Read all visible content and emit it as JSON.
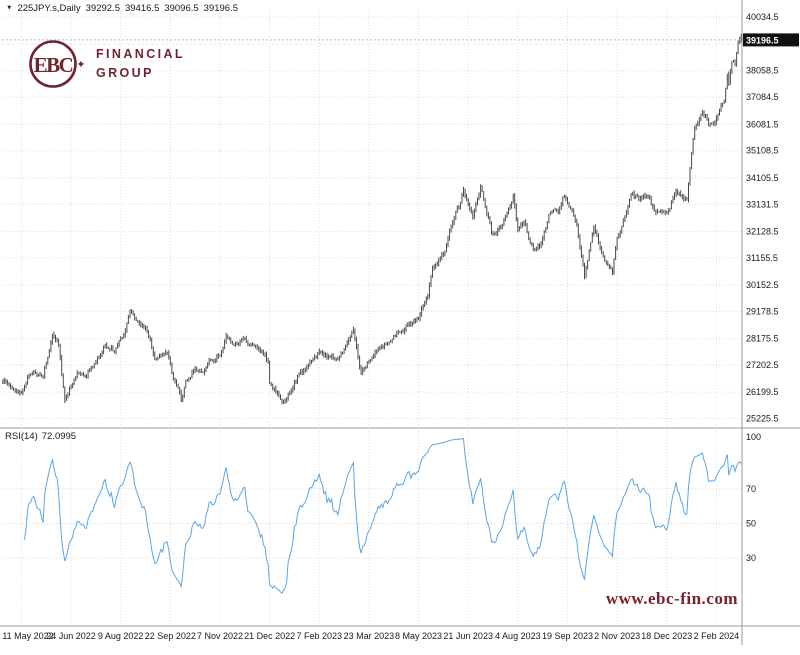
{
  "title_bar": {
    "marker_glyph": "▼",
    "symbol": "225JPY.s,Daily"
  },
  "brand": {
    "monogram": "EBC",
    "spark_glyph": "✦",
    "line1": "FINANCIAL",
    "line2": "GROUP",
    "color": "#6f2430"
  },
  "price_axis": {
    "labels": [
      40034.5,
      38058.5,
      37084.5,
      36081.5,
      35108.5,
      34105.5,
      33131.5,
      32128.5,
      31155.5,
      30152.5,
      29178.5,
      28175.5,
      27202.5,
      26199.5,
      25225.5
    ],
    "hidden_gridline": 39046.5,
    "current_price_label": "39196.5",
    "badge_bg": "#111111",
    "badge_fg": "#ffffff"
  },
  "time_axis": {
    "labels": [
      "11 May 2022",
      "24 Jun 2022",
      "9 Aug 2022",
      "22 Sep 2022",
      "7 Nov 2022",
      "21 Dec 2022",
      "7 Feb 2023",
      "23 Mar 2023",
      "8 May 2023",
      "21 Jun 2023",
      "4 Aug 2023",
      "19 Sep 2023",
      "2 Nov 2023",
      "18 Dec 2023",
      "2 Feb 2024"
    ]
  },
  "rsi_panel": {
    "name": "RSI(14)",
    "value": "72.0995",
    "axis_labels": [
      100,
      70,
      50,
      30
    ],
    "level_lines": [
      70,
      50,
      30
    ],
    "line_color": "#5aa6e6"
  },
  "watermark": {
    "text": "www.ebc-fin.com",
    "color": "#7a1f2b"
  },
  "colors": {
    "grid": "#dcdcdc",
    "bar": "#4a4a4a",
    "separator": "#9a9a9a",
    "axis_text": "#1a1a1a",
    "last_price_line": "#bbbbbb"
  },
  "chart_data": {
    "type": "bar",
    "symbol": "225JPY.s",
    "timeframe": "Daily",
    "title": "225JPY.s,Daily",
    "ohlc_last": {
      "open": 39292.5,
      "high": 39416.5,
      "low": 39096.5,
      "close": 39196.5
    },
    "price_pane": {
      "bar_count": 477,
      "ylim": [
        24950,
        40300
      ],
      "anchors": [
        [
          0,
          26650
        ],
        [
          8,
          26280
        ],
        [
          12,
          26200
        ],
        [
          16,
          26700
        ],
        [
          20,
          26900
        ],
        [
          26,
          26750
        ],
        [
          32,
          28350
        ],
        [
          36,
          27950
        ],
        [
          40,
          25850
        ],
        [
          44,
          26450
        ],
        [
          48,
          26900
        ],
        [
          54,
          26800
        ],
        [
          60,
          27350
        ],
        [
          66,
          27950
        ],
        [
          72,
          27750
        ],
        [
          78,
          28300
        ],
        [
          82,
          29200
        ],
        [
          86,
          28900
        ],
        [
          92,
          28550
        ],
        [
          98,
          27500
        ],
        [
          106,
          27650
        ],
        [
          110,
          26750
        ],
        [
          115,
          25950
        ],
        [
          118,
          26600
        ],
        [
          124,
          27050
        ],
        [
          128,
          26900
        ],
        [
          134,
          27400
        ],
        [
          140,
          27550
        ],
        [
          144,
          28250
        ],
        [
          150,
          27950
        ],
        [
          156,
          28150
        ],
        [
          162,
          27800
        ],
        [
          168,
          27650
        ],
        [
          171,
          27350
        ],
        [
          172,
          26550
        ],
        [
          176,
          26250
        ],
        [
          180,
          25750
        ],
        [
          184,
          26100
        ],
        [
          188,
          26550
        ],
        [
          192,
          26900
        ],
        [
          198,
          27350
        ],
        [
          204,
          27650
        ],
        [
          210,
          27500
        ],
        [
          216,
          27450
        ],
        [
          222,
          28000
        ],
        [
          226,
          28550
        ],
        [
          231,
          26900
        ],
        [
          236,
          27400
        ],
        [
          242,
          27900
        ],
        [
          248,
          28000
        ],
        [
          254,
          28450
        ],
        [
          260,
          28600
        ],
        [
          268,
          28950
        ],
        [
          274,
          29850
        ],
        [
          277,
          30800
        ],
        [
          285,
          31400
        ],
        [
          288,
          32200
        ],
        [
          294,
          33050
        ],
        [
          297,
          33700
        ],
        [
          303,
          32700
        ],
        [
          308,
          33750
        ],
        [
          314,
          32400
        ],
        [
          315,
          31950
        ],
        [
          322,
          32300
        ],
        [
          329,
          33450
        ],
        [
          332,
          32200
        ],
        [
          336,
          32450
        ],
        [
          342,
          31450
        ],
        [
          347,
          31650
        ],
        [
          352,
          32700
        ],
        [
          358,
          32900
        ],
        [
          362,
          33500
        ],
        [
          364,
          33250
        ],
        [
          370,
          32400
        ],
        [
          375,
          30550
        ],
        [
          381,
          32250
        ],
        [
          387,
          31250
        ],
        [
          393,
          30650
        ],
        [
          396,
          31950
        ],
        [
          400,
          32500
        ],
        [
          405,
          33500
        ],
        [
          411,
          33350
        ],
        [
          416,
          33450
        ],
        [
          420,
          32850
        ],
        [
          424,
          32750
        ],
        [
          428,
          32800
        ],
        [
          434,
          33650
        ],
        [
          437,
          33450
        ],
        [
          439,
          33250
        ],
        [
          441,
          33350
        ],
        [
          444,
          35050
        ],
        [
          446,
          35900
        ],
        [
          451,
          36550
        ],
        [
          455,
          36100
        ],
        [
          459,
          36050
        ],
        [
          460,
          36200
        ],
        [
          463,
          36700
        ],
        [
          465,
          36900
        ],
        [
          467,
          37950
        ],
        [
          468,
          37550
        ],
        [
          470,
          38450
        ],
        [
          472,
          38300
        ],
        [
          474,
          39100
        ],
        [
          476,
          39196.5
        ]
      ]
    },
    "x_axis": {
      "label_days": [
        12,
        44,
        76,
        108,
        140,
        172,
        204,
        236,
        268,
        300,
        332,
        364,
        396,
        428,
        460
      ]
    },
    "rsi": {
      "period": 14,
      "current": 72.0995,
      "levels": [
        70,
        50,
        30
      ],
      "range": [
        0,
        100
      ]
    }
  }
}
